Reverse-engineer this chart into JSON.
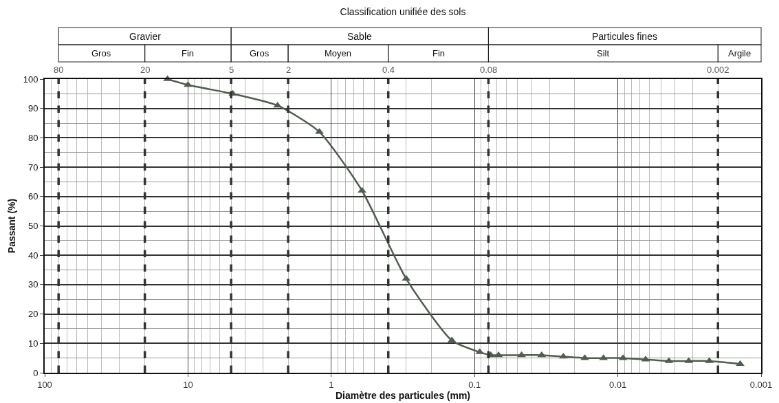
{
  "chart_data": {
    "type": "line",
    "title": "Classification unifiée des sols",
    "xlabel": "Diamètre des particules (mm)",
    "ylabel": "Passant (%)",
    "x": [
      13.9,
      10,
      4.87,
      2.37,
      1.21,
      0.61,
      0.3,
      0.144,
      0.092,
      0.077,
      0.068,
      0.047,
      0.034,
      0.024,
      0.017,
      0.0126,
      0.0092,
      0.0064,
      0.0044,
      0.0032,
      0.0023,
      0.0014
    ],
    "series": [
      {
        "color": "#4f5e4f",
        "values": [
          100,
          98,
          95,
          91,
          82,
          62,
          32,
          11,
          7,
          6,
          6,
          6,
          6,
          5.5,
          5,
          5,
          5,
          4.5,
          4,
          4,
          4,
          3
        ]
      }
    ],
    "log": "x",
    "xlim": [
      100,
      0.001
    ],
    "xticks": [
      100,
      10,
      1,
      0.1,
      0.01,
      0.001
    ],
    "ylim": [
      0,
      100
    ],
    "yticks": [
      0,
      10,
      20,
      30,
      40,
      50,
      60,
      70,
      80,
      90,
      100
    ],
    "grid": true,
    "marker": "triangle",
    "line_style": "solid",
    "ref_lines": [
      {
        "axis": "x",
        "value": 80,
        "label": "80"
      },
      {
        "axis": "x",
        "value": 20,
        "label": "20"
      },
      {
        "axis": "x",
        "value": 5,
        "label": "5"
      },
      {
        "axis": "x",
        "value": 2,
        "label": "2"
      },
      {
        "axis": "x",
        "value": 0.4,
        "label": "0.4"
      },
      {
        "axis": "x",
        "value": 0.08,
        "label": "0.08"
      },
      {
        "axis": "x",
        "value": 0.002,
        "label": "0.002"
      }
    ],
    "annotations": [
      "Gravier",
      "Sable",
      "Particules fines",
      "Gros",
      "Fin",
      "Gros",
      "Moyen",
      "Fin",
      "Silt",
      "Argile"
    ]
  }
}
